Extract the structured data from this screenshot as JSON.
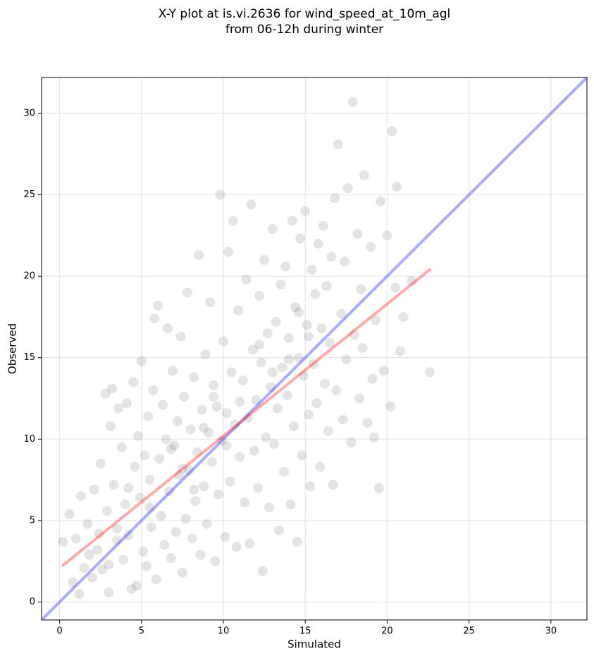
{
  "chart_data": {
    "type": "scatter",
    "title": "X-Y plot at is.vi.2636 for wind_speed_at_10m_agl",
    "subtitle": "from 06-12h during winter",
    "x_label": "Simulated",
    "y_label": "Observed",
    "xlim": [
      -1.1,
      32.2
    ],
    "ylim": [
      -1.1,
      32.2
    ],
    "xticks": [
      0,
      5,
      10,
      15,
      20,
      25,
      30
    ],
    "yticks": [
      0,
      5,
      10,
      15,
      20,
      25,
      30
    ],
    "grid": true,
    "points": {
      "color": "#555555",
      "x": [
        0.2,
        0.6,
        0.8,
        1.0,
        1.2,
        1.3,
        1.5,
        1.7,
        2.0,
        2.1,
        2.3,
        2.5,
        2.6,
        2.8,
        2.9,
        3.0,
        3.1,
        3.2,
        3.3,
        3.5,
        3.6,
        3.8,
        3.9,
        4.0,
        4.1,
        4.2,
        4.4,
        4.5,
        4.6,
        4.7,
        4.8,
        4.9,
        5.0,
        5.1,
        5.2,
        5.3,
        5.4,
        5.5,
        5.6,
        5.7,
        5.8,
        5.9,
        6.0,
        6.1,
        6.2,
        6.3,
        6.4,
        6.5,
        6.6,
        6.7,
        6.8,
        6.9,
        7.0,
        7.1,
        7.2,
        7.3,
        7.4,
        7.5,
        7.6,
        7.7,
        7.8,
        7.9,
        8.0,
        8.1,
        8.2,
        8.3,
        8.4,
        8.5,
        8.6,
        8.7,
        8.8,
        8.9,
        9.0,
        9.1,
        9.2,
        9.3,
        9.4,
        9.5,
        9.6,
        9.7,
        9.8,
        9.9,
        10.0,
        10.1,
        10.2,
        10.3,
        10.4,
        10.5,
        10.6,
        10.7,
        10.8,
        10.9,
        11.0,
        11.2,
        11.3,
        11.4,
        11.5,
        11.6,
        11.7,
        11.8,
        11.9,
        12.0,
        12.1,
        12.2,
        12.3,
        12.4,
        12.5,
        12.6,
        12.7,
        12.8,
        12.9,
        13.0,
        13.1,
        13.2,
        13.3,
        13.4,
        13.5,
        13.6,
        13.7,
        13.8,
        13.9,
        14.0,
        14.1,
        14.2,
        14.3,
        14.4,
        14.5,
        14.6,
        14.7,
        14.8,
        14.9,
        15.0,
        15.1,
        15.2,
        15.3,
        15.4,
        15.5,
        15.6,
        15.7,
        15.8,
        15.9,
        16.0,
        16.1,
        16.2,
        16.3,
        16.4,
        16.5,
        16.6,
        16.7,
        16.8,
        16.9,
        17.0,
        17.2,
        17.3,
        17.4,
        17.5,
        17.6,
        17.8,
        17.9,
        18.0,
        18.2,
        18.3,
        18.4,
        18.5,
        18.6,
        18.8,
        19.0,
        19.1,
        19.2,
        19.3,
        19.5,
        19.6,
        19.8,
        20.0,
        20.2,
        20.3,
        20.5,
        20.6,
        20.8,
        21.0,
        21.5,
        22.6,
        3.5,
        4.2,
        5.5,
        6.8,
        7.5,
        8.2,
        8.8,
        9.4,
        10.2,
        11.0,
        12.2,
        13.0,
        14.0,
        14.6,
        15.2,
        2.4,
        3.0,
        1.8
      ],
      "y": [
        3.7,
        5.4,
        1.2,
        3.9,
        0.5,
        6.5,
        2.1,
        4.8,
        1.5,
        6.9,
        3.2,
        8.5,
        2.0,
        12.8,
        5.6,
        0.6,
        10.8,
        13.1,
        7.2,
        3.8,
        11.9,
        9.5,
        2.6,
        6.0,
        12.2,
        4.1,
        0.8,
        13.5,
        8.3,
        1.0,
        10.2,
        6.4,
        14.8,
        3.1,
        9.0,
        2.2,
        11.4,
        7.5,
        4.6,
        13.0,
        17.4,
        1.4,
        18.2,
        8.8,
        5.3,
        12.1,
        3.5,
        10.0,
        16.8,
        6.8,
        2.7,
        14.2,
        9.6,
        4.3,
        11.1,
        7.8,
        16.3,
        1.8,
        12.6,
        5.1,
        19.0,
        8.1,
        10.6,
        3.9,
        13.8,
        6.2,
        9.2,
        21.3,
        2.9,
        11.8,
        7.1,
        15.2,
        4.8,
        10.4,
        18.4,
        8.6,
        13.3,
        2.5,
        12.0,
        6.6,
        25.0,
        9.9,
        16.0,
        4.0,
        11.6,
        21.5,
        7.4,
        14.1,
        23.4,
        10.9,
        3.4,
        17.9,
        8.9,
        13.6,
        6.1,
        19.8,
        11.3,
        3.6,
        24.4,
        15.5,
        9.3,
        12.4,
        7.0,
        18.8,
        14.7,
        1.9,
        21.0,
        10.1,
        16.5,
        5.8,
        13.2,
        22.9,
        9.7,
        17.2,
        11.9,
        4.4,
        19.5,
        14.4,
        8.0,
        20.6,
        12.7,
        16.2,
        6.0,
        23.4,
        10.8,
        18.1,
        3.7,
        15.0,
        22.3,
        9.0,
        13.9,
        24.0,
        17.0,
        11.5,
        7.1,
        20.4,
        14.6,
        18.9,
        12.2,
        22.0,
        8.3,
        16.8,
        23.1,
        13.4,
        19.4,
        10.5,
        15.9,
        21.2,
        7.2,
        24.8,
        13.0,
        28.1,
        17.7,
        11.2,
        20.9,
        14.9,
        25.4,
        9.8,
        30.7,
        16.4,
        22.6,
        12.5,
        19.2,
        15.6,
        26.2,
        11.0,
        21.8,
        13.7,
        10.1,
        17.3,
        7.0,
        24.6,
        14.2,
        22.5,
        12.0,
        28.9,
        19.3,
        25.5,
        15.4,
        17.5,
        19.7,
        14.1,
        4.5,
        7.0,
        5.8,
        9.4,
        8.2,
        6.9,
        10.7,
        12.6,
        9.6,
        12.3,
        15.8,
        14.1,
        14.9,
        17.8,
        16.3,
        4.2,
        2.3,
        2.9
      ]
    },
    "lines": [
      {
        "color": "#0000ff",
        "x": [
          -1.1,
          32.2
        ],
        "y": [
          -1.1,
          32.2
        ]
      },
      {
        "color": "#ff0000",
        "x": [
          0.2,
          22.6
        ],
        "y": [
          2.25,
          20.4
        ]
      }
    ]
  }
}
